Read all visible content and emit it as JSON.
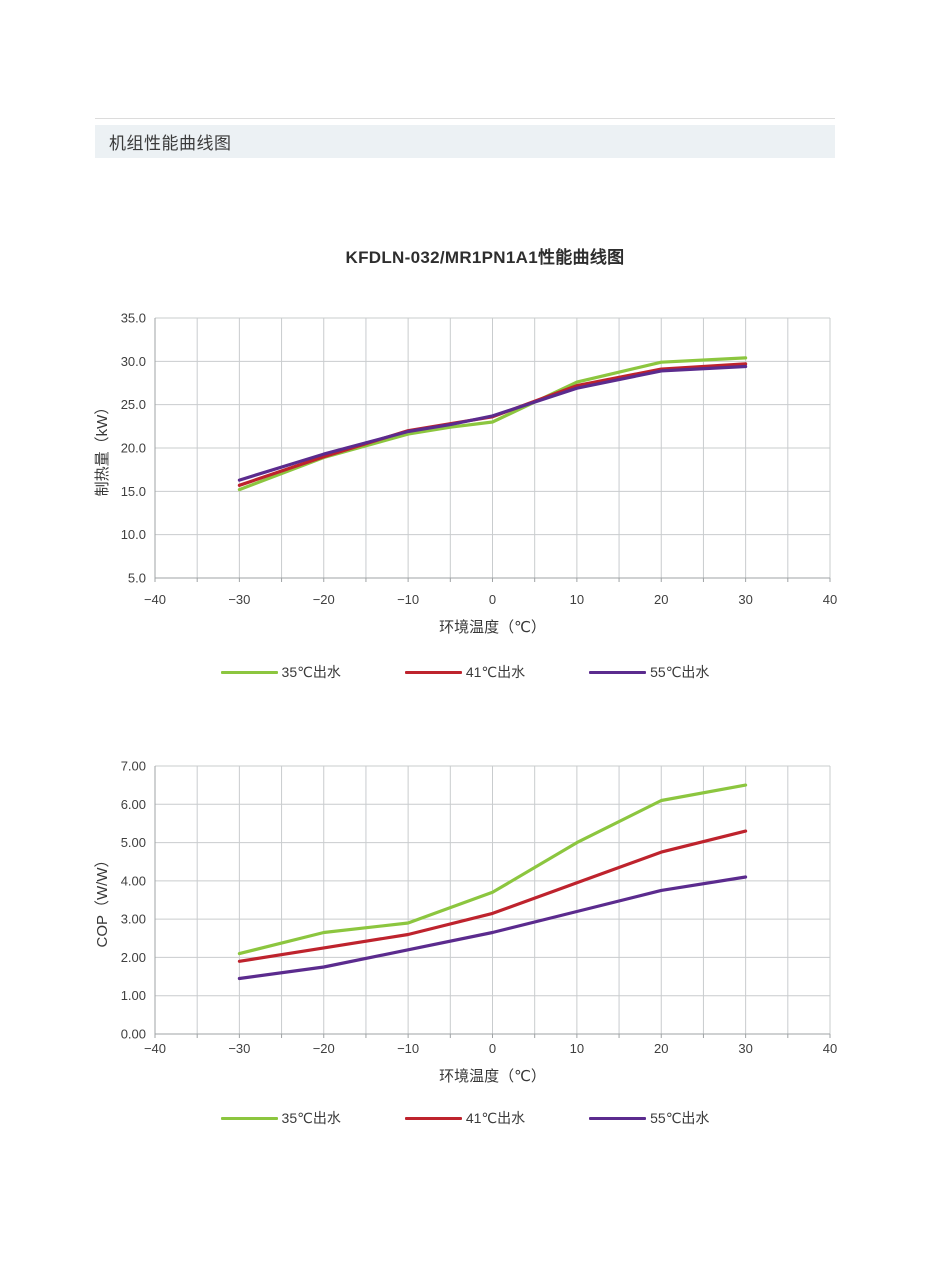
{
  "section": {
    "title": "机组性能曲线图"
  },
  "chart_title": "KFDLN-032/MR1PN1A1性能曲线图",
  "colors": {
    "series_35c": "#8CC63F",
    "series_41c": "#BE232D",
    "series_55c": "#5B2B8E",
    "grid": "#C9CCCE",
    "axis": "#9FA3A5",
    "header_bg": "#ECF1F4",
    "text": "#3F3F3F"
  },
  "legend": {
    "entries": [
      {
        "label": "35℃出水",
        "color": "#8CC63F"
      },
      {
        "label": "41℃出水",
        "color": "#BE232D"
      },
      {
        "label": "55℃出水",
        "color": "#5B2B8E"
      }
    ]
  },
  "chart_data": [
    {
      "type": "line",
      "title": "KFDLN-032/MR1PN1A1性能曲线图",
      "xlabel": "环境温度（℃）",
      "ylabel": "制热量（kW）",
      "xlim": [
        -40,
        40
      ],
      "ylim": [
        5,
        35
      ],
      "minor_x_step": 5,
      "grid": true,
      "legend_position": "bottom",
      "xticks": {
        "values": [
          -40,
          -30,
          -20,
          -10,
          0,
          10,
          20,
          30,
          40
        ],
        "labels": [
          "−40",
          "−30",
          "−20",
          "−10",
          "0",
          "10",
          "20",
          "30",
          "40"
        ]
      },
      "yticks": {
        "values": [
          35,
          30,
          25,
          20,
          15,
          10,
          5
        ],
        "labels": [
          "35.0",
          "30.0",
          "25.0",
          "20.0",
          "15.0",
          "10.0",
          "5.0"
        ]
      },
      "x": [
        -30,
        -20,
        -10,
        -5,
        0,
        10,
        20,
        30
      ],
      "series": [
        {
          "name": "35℃出水",
          "color": "#8CC63F",
          "values": [
            15.2,
            18.9,
            21.6,
            22.4,
            23.0,
            27.6,
            29.9,
            30.4
          ]
        },
        {
          "name": "41℃出水",
          "color": "#BE232D",
          "values": [
            15.7,
            19.0,
            22.0,
            22.8,
            23.6,
            27.2,
            29.1,
            29.7
          ]
        },
        {
          "name": "55℃出水",
          "color": "#5B2B8E",
          "values": [
            16.3,
            19.3,
            21.9,
            22.7,
            23.7,
            26.9,
            28.9,
            29.4
          ]
        }
      ]
    },
    {
      "type": "line",
      "title": "",
      "xlabel": "环境温度（℃）",
      "ylabel": "COP（W/W）",
      "xlim": [
        -40,
        40
      ],
      "ylim": [
        0,
        7
      ],
      "minor_x_step": 5,
      "grid": true,
      "legend_position": "bottom",
      "xticks": {
        "values": [
          -40,
          -30,
          -20,
          -10,
          0,
          10,
          20,
          30,
          40
        ],
        "labels": [
          "−40",
          "−30",
          "−20",
          "−10",
          "0",
          "10",
          "20",
          "30",
          "40"
        ]
      },
      "yticks": {
        "values": [
          7,
          6,
          5,
          4,
          3,
          2,
          1,
          0
        ],
        "labels": [
          "7.00",
          "6.00",
          "5.00",
          "4.00",
          "3.00",
          "2.00",
          "1.00",
          "0.00"
        ]
      },
      "x": [
        -30,
        -20,
        -10,
        0,
        10,
        20,
        30
      ],
      "series": [
        {
          "name": "35℃出水",
          "color": "#8CC63F",
          "values": [
            2.1,
            2.65,
            2.9,
            3.7,
            5.0,
            6.1,
            6.5
          ]
        },
        {
          "name": "41℃出水",
          "color": "#BE232D",
          "values": [
            1.9,
            2.25,
            2.6,
            3.15,
            3.95,
            4.75,
            5.3
          ]
        },
        {
          "name": "55℃出水",
          "color": "#5B2B8E",
          "values": [
            1.45,
            1.75,
            2.2,
            2.65,
            3.2,
            3.75,
            4.1
          ]
        }
      ]
    }
  ]
}
